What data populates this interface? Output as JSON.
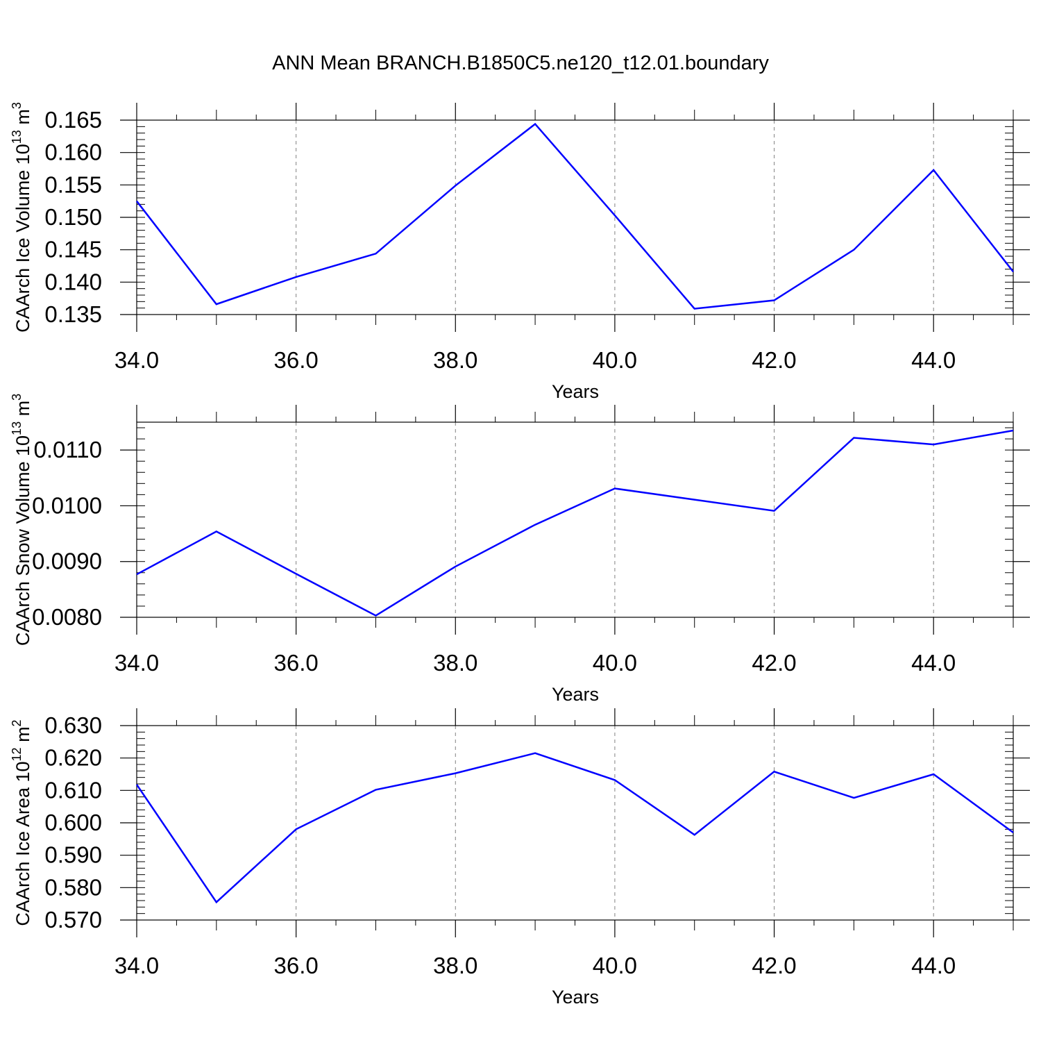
{
  "title": "ANN Mean BRANCH.B1850C5.ne120_t12.01.boundary",
  "colors": {
    "line": "#0000ff",
    "axis": "#000000",
    "grid": "#808080"
  },
  "chart_data": [
    {
      "type": "line",
      "ylabel": "CAArch Ice Volume 10",
      "ylabel_exp": "13",
      "ylabel_unit": "m",
      "ylabel_unit_exp": "3",
      "xlabel": "Years",
      "xlim": [
        34,
        45
      ],
      "ylim": [
        0.135,
        0.165
      ],
      "xticks": [
        "34.0",
        "36.0",
        "38.0",
        "40.0",
        "42.0",
        "44.0"
      ],
      "yticks": [
        "0.135",
        "0.140",
        "0.145",
        "0.150",
        "0.155",
        "0.160",
        "0.165"
      ],
      "grid": "vertical dashed at major x ticks",
      "series": [
        {
          "x": [
            34,
            35,
            36,
            37,
            38,
            39,
            40,
            41,
            42,
            43,
            44,
            45
          ],
          "values": [
            0.1525,
            0.1366,
            0.1408,
            0.1444,
            0.1549,
            0.1644,
            0.1503,
            0.1359,
            0.1372,
            0.145,
            0.1573,
            0.1416
          ]
        }
      ]
    },
    {
      "type": "line",
      "ylabel": "CAArch Snow Volume 10",
      "ylabel_exp": "13",
      "ylabel_unit": "m",
      "ylabel_unit_exp": "3",
      "xlabel": "Years",
      "xlim": [
        34,
        45
      ],
      "ylim": [
        0.008,
        0.0115
      ],
      "xticks": [
        "34.0",
        "36.0",
        "38.0",
        "40.0",
        "42.0",
        "44.0"
      ],
      "yticks": [
        "0.0080",
        "0.0090",
        "0.0100",
        "0.0110"
      ],
      "grid": "vertical dashed at major x ticks",
      "series": [
        {
          "x": [
            34,
            35,
            36,
            37,
            38,
            39,
            40,
            41,
            42,
            43,
            44,
            45
          ],
          "values": [
            0.00877,
            0.00954,
            0.00878,
            0.00803,
            0.00891,
            0.00966,
            0.01031,
            0.01011,
            0.00991,
            0.01122,
            0.0111,
            0.01135
          ]
        }
      ]
    },
    {
      "type": "line",
      "ylabel": "CAArch Ice Area 10",
      "ylabel_exp": "12",
      "ylabel_unit": "m",
      "ylabel_unit_exp": "2",
      "xlabel": "Years",
      "xlim": [
        34,
        45
      ],
      "ylim": [
        0.57,
        0.63
      ],
      "xticks": [
        "34.0",
        "36.0",
        "38.0",
        "40.0",
        "42.0",
        "44.0"
      ],
      "yticks": [
        "0.570",
        "0.580",
        "0.590",
        "0.600",
        "0.610",
        "0.620",
        "0.630"
      ],
      "grid": "vertical dashed at major x ticks",
      "series": [
        {
          "x": [
            34,
            35,
            36,
            37,
            38,
            39,
            40,
            41,
            42,
            43,
            44,
            45
          ],
          "values": [
            0.6118,
            0.5755,
            0.598,
            0.6102,
            0.6153,
            0.6215,
            0.6132,
            0.5963,
            0.6158,
            0.6077,
            0.615,
            0.597
          ]
        }
      ]
    }
  ]
}
